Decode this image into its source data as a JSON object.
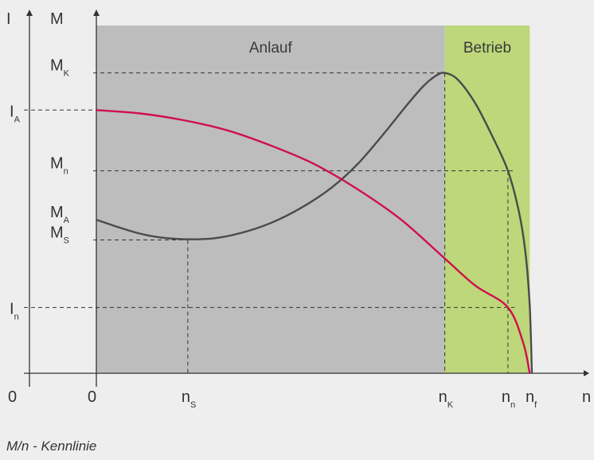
{
  "colors": {
    "background": "#eeeeee",
    "startup_region": "#bdbdbd",
    "operation_region": "#bdd77a",
    "torque_curve": "#4a4a4a",
    "current_curve": "#d0104c",
    "axes": "#333333",
    "guides": "#333333"
  },
  "chart_data": {
    "type": "line",
    "grid": false,
    "caption": "M/n - Kennlinie",
    "axes": {
      "y_current_label": "I",
      "y_torque_label": "M",
      "x_label": "n",
      "origin_current": "0",
      "origin_torque": "0"
    },
    "regions": [
      {
        "name": "Anlauf",
        "x_range": [
          0,
          0.8
        ]
      },
      {
        "name": "Betrieb",
        "x_range": [
          0.8,
          0.995
        ]
      }
    ],
    "x_ticks": [
      {
        "main": "n",
        "sub": "S",
        "value": 0.21
      },
      {
        "main": "n",
        "sub": "K",
        "value": 0.8
      },
      {
        "main": "n",
        "sub": "n",
        "value": 0.945
      },
      {
        "main": "n",
        "sub": "f",
        "value": 1.0
      }
    ],
    "y_ticks_current": [
      {
        "main": "I",
        "sub": "A",
        "value": 0.78
      },
      {
        "main": "I",
        "sub": "n",
        "value": 0.195
      }
    ],
    "y_ticks_torque": [
      {
        "main": "M",
        "sub": "K",
        "value": 0.89
      },
      {
        "main": "M",
        "sub": "n",
        "value": 0.6
      },
      {
        "main": "M",
        "sub": "A",
        "value": 0.455
      },
      {
        "main": "M",
        "sub": "S",
        "value": 0.395
      }
    ],
    "ylim": [
      0,
      1
    ],
    "xlim": [
      0,
      1
    ],
    "series": [
      {
        "name": "M",
        "x": [
          0,
          0.05,
          0.1,
          0.15,
          0.21,
          0.27,
          0.33,
          0.4,
          0.47,
          0.54,
          0.6,
          0.66,
          0.71,
          0.75,
          0.78,
          0.8,
          0.83,
          0.87,
          0.91,
          0.945,
          0.97,
          0.985,
          0.995,
          1.0
        ],
        "y": [
          0.455,
          0.433,
          0.414,
          0.402,
          0.397,
          0.4,
          0.415,
          0.445,
          0.49,
          0.55,
          0.62,
          0.71,
          0.79,
          0.85,
          0.882,
          0.89,
          0.87,
          0.8,
          0.7,
          0.6,
          0.48,
          0.36,
          0.2,
          0.0
        ]
      },
      {
        "name": "I",
        "x": [
          0,
          0.1,
          0.2,
          0.3,
          0.4,
          0.5,
          0.6,
          0.7,
          0.8,
          0.87,
          0.945,
          0.98,
          0.995
        ],
        "y": [
          0.78,
          0.77,
          0.75,
          0.72,
          0.675,
          0.62,
          0.545,
          0.455,
          0.34,
          0.26,
          0.195,
          0.09,
          0.0
        ]
      }
    ],
    "guides": [
      {
        "from": "y_torque",
        "y": 0.89,
        "to_x": 0.8,
        "down": true
      },
      {
        "from": "y_torque",
        "y": 0.6,
        "to_x": 0.96,
        "down": false
      },
      {
        "from": "y_torque",
        "y": 0.395,
        "to_x": 0.21,
        "down": true
      },
      {
        "from": "y_current",
        "y": 0.78,
        "to_x": 0.0,
        "down": false
      },
      {
        "from": "y_current",
        "y": 0.195,
        "to_x": 0.96,
        "down": false
      },
      {
        "from": "point",
        "x": 0.945,
        "y": 0.6,
        "down": true
      }
    ]
  }
}
